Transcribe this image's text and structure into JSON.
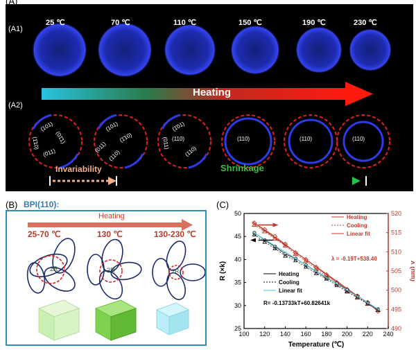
{
  "panel_labels": {
    "A": "(A)",
    "A1": "(A1)",
    "A2": "(A2)",
    "B": "(B)",
    "C": "(C)"
  },
  "panelA": {
    "temps": [
      "25 ℃",
      "70 ℃",
      "110 ℃",
      "150 ℃",
      "190 ℃",
      "230 ℃"
    ],
    "heating_label": "Heating",
    "invariability_label": "Invariability",
    "shrinkage_label": "Shrinkage",
    "miller": {
      "p101": "(101)",
      "p011": "(011)",
      "p110": "(110)",
      "p1bar01": "(1̄01)",
      "p01bar1": "(01̄1)",
      "p1bar10": "(1̄10)"
    },
    "colors": {
      "disc": "#2f3ae8",
      "dashed_circle": "#e02020"
    }
  },
  "panelB": {
    "title": "BPI(110):",
    "heating_label": "Heating",
    "temps": [
      "25-70 ℃",
      "130 ℃",
      "130-230 ℃"
    ],
    "radius_label": "2R",
    "colors": {
      "border": "#2a8fc0",
      "cube1": "#c9f0b3",
      "cube2": "#7fd14f",
      "cube3": "#b9eef6"
    }
  },
  "chart_data": {
    "type": "line",
    "xlabel": "Temperature (℃)",
    "ylabel_left": "R (×k)",
    "ylabel_right": "λ (nm)",
    "xlim": [
      100,
      240
    ],
    "ylim_left": [
      25,
      50
    ],
    "ylim_right": [
      490,
      520
    ],
    "xticks": [
      100,
      120,
      140,
      160,
      180,
      200,
      220,
      240
    ],
    "yticks_left": [
      25,
      30,
      35,
      40,
      45,
      50
    ],
    "yticks_right": [
      490,
      495,
      500,
      505,
      510,
      515,
      520
    ],
    "annotation_lambda": "λ = -0.19T+538.40",
    "annotation_R": "R= -0.13733kT+60.82641k",
    "legend_right": [
      "Heating",
      "Cooling",
      "Linear fit"
    ],
    "legend_left": [
      "Heating",
      "Cooling",
      "Linear fit"
    ],
    "series": [
      {
        "name": "Heating",
        "axis": "right",
        "color": "#c0392b",
        "x": [
          110,
          120,
          130,
          140,
          150,
          160,
          170,
          180,
          190,
          200,
          210,
          220,
          230
        ],
        "y": [
          517.5,
          515.8,
          514.0,
          512.0,
          509.8,
          508.0,
          506.0,
          504.0,
          502.0,
          500.2,
          498.5,
          496.8,
          494.5
        ]
      },
      {
        "name": "Cooling",
        "axis": "right",
        "color": "#c0392b",
        "x": [
          110,
          120,
          130,
          140,
          150,
          160,
          170,
          180,
          190,
          200,
          210,
          220,
          230
        ],
        "y": [
          517.0,
          515.3,
          513.4,
          511.6,
          509.4,
          507.6,
          505.6,
          503.6,
          501.6,
          499.8,
          498.0,
          496.4,
          494.8
        ]
      },
      {
        "name": "Linear fit",
        "axis": "right",
        "color": "#c0392b",
        "x": [
          108,
          232
        ],
        "y": [
          517.88,
          494.32
        ]
      },
      {
        "name": "Heating",
        "axis": "left",
        "color": "#222222",
        "x": [
          110,
          120,
          130,
          140,
          150,
          160,
          170,
          180,
          190,
          200,
          210,
          220,
          230
        ],
        "y": [
          45.8,
          44.2,
          42.8,
          41.2,
          40.2,
          38.8,
          37.4,
          36.0,
          34.8,
          33.4,
          32.0,
          30.6,
          29.2
        ]
      },
      {
        "name": "Cooling",
        "axis": "left",
        "color": "#222222",
        "x": [
          110,
          120,
          130,
          140,
          150,
          160,
          170,
          180,
          190,
          200,
          210,
          220,
          230
        ],
        "y": [
          45.4,
          43.8,
          42.4,
          40.8,
          39.8,
          38.4,
          37.0,
          35.8,
          34.4,
          33.0,
          31.8,
          30.4,
          29.0
        ]
      },
      {
        "name": "Linear fit",
        "axis": "left",
        "color": "#4fc3d6",
        "x": [
          108,
          232
        ],
        "y": [
          45.99,
          28.96
        ]
      }
    ]
  }
}
